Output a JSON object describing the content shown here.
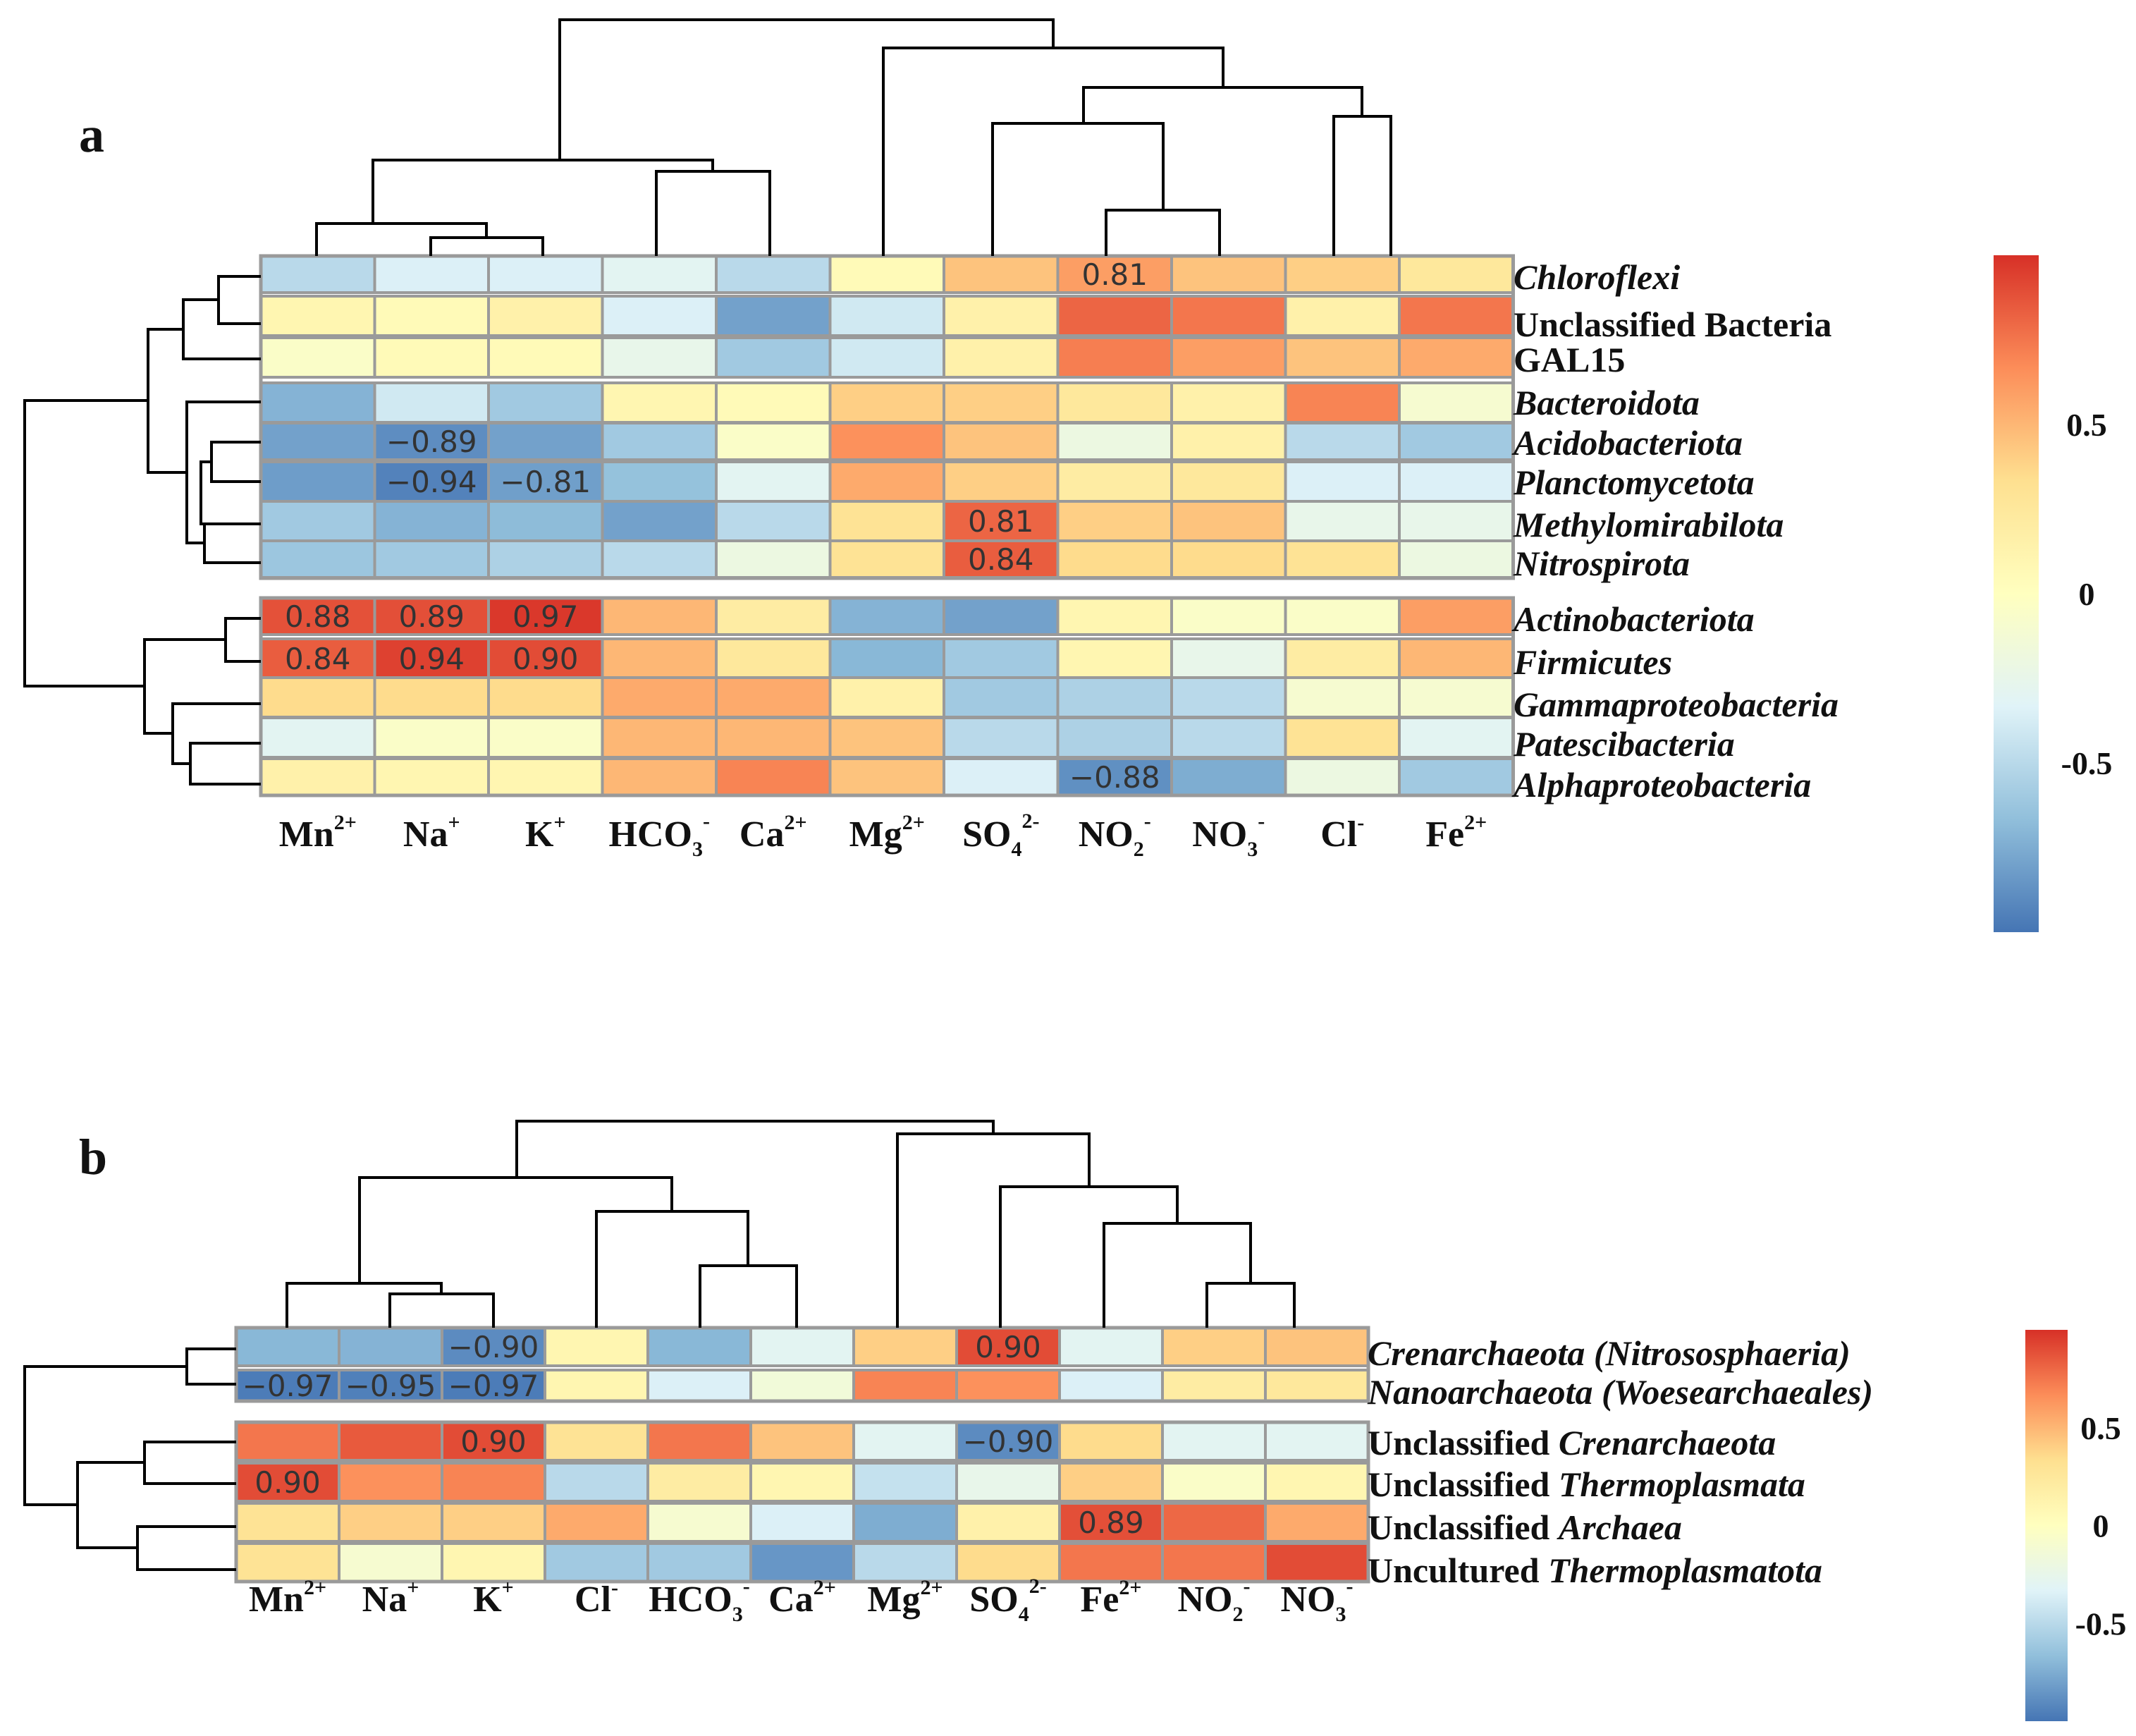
{
  "chart_data": [
    {
      "panel_label": "a",
      "type": "heatmap",
      "columns": [
        "Mn2+",
        "Na+",
        "K+",
        "HCO3-",
        "Ca2+",
        "Mg2+",
        "SO42-",
        "NO2-",
        "NO3-",
        "Cl-",
        "Fe2+"
      ],
      "column_labels": [
        {
          "base": "Mn",
          "sup": "2+",
          "sub": ""
        },
        {
          "base": "Na",
          "sup": "+",
          "sub": ""
        },
        {
          "base": "K",
          "sup": "+",
          "sub": ""
        },
        {
          "base": "HCO",
          "sup": "-",
          "sub": "3"
        },
        {
          "base": "Ca",
          "sup": "2+",
          "sub": ""
        },
        {
          "base": "Mg",
          "sup": "2+",
          "sub": ""
        },
        {
          "base": "SO",
          "sup": "2-",
          "sub": "4"
        },
        {
          "base": "NO",
          "sup": "-",
          "sub": "2"
        },
        {
          "base": "NO",
          "sup": "-",
          "sub": "3"
        },
        {
          "base": "Cl",
          "sup": "-",
          "sub": ""
        },
        {
          "base": "Fe",
          "sup": "2+",
          "sub": ""
        }
      ],
      "rows": [
        {
          "parts": [
            {
              "t": "Chloroflexi",
              "i": true
            }
          ]
        },
        {
          "parts": [
            {
              "t": "Unclassified Bacteria",
              "i": false
            }
          ]
        },
        {
          "parts": [
            {
              "t": "GAL15",
              "i": false
            }
          ]
        },
        {
          "parts": [
            {
              "t": "Bacteroidota",
              "i": true
            }
          ]
        },
        {
          "parts": [
            {
              "t": "Acidobacteriota",
              "i": true
            }
          ]
        },
        {
          "parts": [
            {
              "t": "Planctomycetota",
              "i": true
            }
          ]
        },
        {
          "parts": [
            {
              "t": "Methylomirabilota",
              "i": true
            }
          ]
        },
        {
          "parts": [
            {
              "t": "Nitrospirota",
              "i": true
            }
          ]
        },
        {
          "parts": [
            {
              "t": "Actinobacteriota",
              "i": true
            }
          ]
        },
        {
          "parts": [
            {
              "t": "Firmicutes",
              "i": true
            }
          ]
        },
        {
          "parts": [
            {
              "t": "Gammaproteobacteria",
              "i": true
            }
          ]
        },
        {
          "parts": [
            {
              "t": "Patescibacteria",
              "i": true
            }
          ]
        },
        {
          "parts": [
            {
              "t": "Alphaproteobacteria",
              "i": true
            }
          ]
        }
      ],
      "values": [
        [
          -0.5,
          -0.35,
          -0.35,
          -0.3,
          -0.5,
          0.05,
          0.45,
          0.6,
          0.45,
          0.4,
          0.25
        ],
        [
          0.1,
          0.05,
          0.15,
          -0.35,
          -0.8,
          -0.4,
          0.15,
          0.81,
          0.75,
          0.15,
          0.75
        ],
        [
          -0.05,
          0.05,
          0.05,
          -0.25,
          -0.6,
          -0.4,
          0.15,
          0.72,
          0.6,
          0.45,
          0.55
        ],
        [
          -0.72,
          -0.4,
          -0.6,
          0.1,
          0.05,
          0.4,
          0.4,
          0.25,
          0.15,
          0.7,
          -0.1
        ],
        [
          -0.8,
          -0.89,
          -0.8,
          -0.6,
          -0.05,
          0.65,
          0.45,
          -0.2,
          0.15,
          -0.5,
          -0.6
        ],
        [
          -0.82,
          -0.94,
          -0.81,
          -0.65,
          -0.3,
          0.55,
          0.4,
          0.2,
          0.25,
          -0.35,
          -0.35
        ],
        [
          -0.6,
          -0.72,
          -0.68,
          -0.8,
          -0.5,
          0.3,
          0.81,
          0.4,
          0.45,
          -0.25,
          -0.25
        ],
        [
          -0.62,
          -0.6,
          -0.55,
          -0.5,
          -0.2,
          0.3,
          0.84,
          0.35,
          0.35,
          0.3,
          -0.2
        ],
        [
          0.88,
          0.89,
          0.97,
          0.5,
          0.2,
          -0.72,
          -0.8,
          0.1,
          -0.05,
          -0.05,
          0.6
        ],
        [
          0.84,
          0.94,
          0.9,
          0.5,
          0.25,
          -0.7,
          -0.6,
          0.1,
          -0.25,
          0.2,
          0.5
        ],
        [
          0.35,
          0.35,
          0.35,
          0.55,
          0.55,
          0.15,
          -0.6,
          -0.55,
          -0.5,
          -0.1,
          -0.1
        ],
        [
          -0.3,
          -0.05,
          -0.05,
          0.5,
          0.5,
          0.45,
          -0.5,
          -0.55,
          -0.5,
          0.3,
          -0.3
        ],
        [
          0.15,
          0.1,
          0.1,
          0.5,
          0.7,
          0.45,
          -0.35,
          -0.88,
          -0.75,
          -0.2,
          -0.6
        ]
      ],
      "labels": [
        [
          null,
          null,
          null,
          null,
          null,
          null,
          null,
          "0.81",
          null,
          null,
          null
        ],
        [
          null,
          null,
          null,
          null,
          null,
          null,
          null,
          null,
          null,
          null,
          null
        ],
        [
          null,
          null,
          null,
          null,
          null,
          null,
          null,
          null,
          null,
          null,
          null
        ],
        [
          null,
          null,
          null,
          null,
          null,
          null,
          null,
          null,
          null,
          null,
          null
        ],
        [
          null,
          "−0.89",
          null,
          null,
          null,
          null,
          null,
          null,
          null,
          null,
          null
        ],
        [
          null,
          "−0.94",
          "−0.81",
          null,
          null,
          null,
          null,
          null,
          null,
          null,
          null
        ],
        [
          null,
          null,
          null,
          null,
          null,
          null,
          "0.81",
          null,
          null,
          null,
          null
        ],
        [
          null,
          null,
          null,
          null,
          null,
          null,
          "0.84",
          null,
          null,
          null,
          null
        ],
        [
          "0.88",
          "0.89",
          "0.97",
          null,
          null,
          null,
          null,
          null,
          null,
          null,
          null
        ],
        [
          "0.84",
          "0.94",
          "0.90",
          null,
          null,
          null,
          null,
          null,
          null,
          null,
          null
        ],
        [
          null,
          null,
          null,
          null,
          null,
          null,
          null,
          null,
          null,
          null,
          null
        ],
        [
          null,
          null,
          null,
          null,
          null,
          null,
          null,
          null,
          null,
          null,
          null
        ],
        [
          null,
          null,
          null,
          null,
          null,
          null,
          null,
          "−0.88",
          null,
          null,
          null
        ]
      ],
      "row_groups": [
        8,
        5
      ],
      "colorbar": {
        "ticks": [
          "0.5",
          "0",
          "-0.5"
        ],
        "tick_values": [
          0.5,
          0,
          -0.5
        ],
        "range": [
          -1,
          1
        ]
      }
    },
    {
      "panel_label": "b",
      "type": "heatmap",
      "columns": [
        "Mn2+",
        "Na+",
        "K+",
        "Cl-",
        "HCO3-",
        "Ca2+",
        "Mg2+",
        "SO42-",
        "Fe2+",
        "NO2-",
        "NO3-"
      ],
      "column_labels": [
        {
          "base": "Mn",
          "sup": "2+",
          "sub": ""
        },
        {
          "base": "Na",
          "sup": "+",
          "sub": ""
        },
        {
          "base": "K",
          "sup": "+",
          "sub": ""
        },
        {
          "base": "Cl",
          "sup": "-",
          "sub": ""
        },
        {
          "base": "HCO",
          "sup": "-",
          "sub": "3"
        },
        {
          "base": "Ca",
          "sup": "2+",
          "sub": ""
        },
        {
          "base": "Mg",
          "sup": "2+",
          "sub": ""
        },
        {
          "base": "SO",
          "sup": "2-",
          "sub": "4"
        },
        {
          "base": "Fe",
          "sup": "2+",
          "sub": ""
        },
        {
          "base": "NO",
          "sup": "-",
          "sub": "2"
        },
        {
          "base": "NO",
          "sup": "-",
          "sub": "3"
        }
      ],
      "rows": [
        {
          "parts": [
            {
              "t": "Crenarchaeota (Nitrososphaeria)",
              "i": true
            }
          ]
        },
        {
          "parts": [
            {
              "t": "Nanoarchaeota (Woesearchaeales)",
              "i": true
            }
          ]
        },
        {
          "parts": [
            {
              "t": "Unclassified ",
              "i": false
            },
            {
              "t": "Crenarchaeota",
              "i": true
            }
          ]
        },
        {
          "parts": [
            {
              "t": "Unclassified ",
              "i": false
            },
            {
              "t": "Thermoplasmata",
              "i": true
            }
          ]
        },
        {
          "parts": [
            {
              "t": "Unclassified ",
              "i": false
            },
            {
              "t": "Archaea",
              "i": true
            }
          ]
        },
        {
          "parts": [
            {
              "t": "Uncultured ",
              "i": false
            },
            {
              "t": "Thermoplasmatota",
              "i": true
            }
          ]
        }
      ],
      "values": [
        [
          -0.7,
          -0.72,
          -0.9,
          0.1,
          -0.7,
          -0.3,
          0.4,
          0.9,
          -0.3,
          0.4,
          0.45
        ],
        [
          -0.97,
          -0.95,
          -0.97,
          0.1,
          -0.35,
          -0.15,
          0.7,
          0.65,
          -0.35,
          0.2,
          0.25
        ],
        [
          0.75,
          0.85,
          0.9,
          0.3,
          0.75,
          0.45,
          -0.3,
          -0.9,
          0.35,
          -0.3,
          -0.3
        ],
        [
          0.9,
          0.65,
          0.7,
          -0.5,
          0.2,
          0.1,
          -0.45,
          -0.25,
          0.4,
          -0.05,
          0.1
        ],
        [
          0.3,
          0.4,
          0.4,
          0.55,
          -0.1,
          -0.35,
          -0.75,
          0.15,
          0.89,
          0.8,
          0.55
        ],
        [
          0.3,
          -0.1,
          0.1,
          -0.6,
          -0.6,
          -0.85,
          -0.5,
          0.35,
          0.75,
          0.75,
          0.9
        ]
      ],
      "labels": [
        [
          null,
          null,
          "−0.90",
          null,
          null,
          null,
          null,
          "0.90",
          null,
          null,
          null
        ],
        [
          "−0.97",
          "−0.95",
          "−0.97",
          null,
          null,
          null,
          null,
          null,
          null,
          null,
          null
        ],
        [
          null,
          null,
          "0.90",
          null,
          null,
          null,
          null,
          "−0.90",
          null,
          null,
          null
        ],
        [
          "0.90",
          null,
          null,
          null,
          null,
          null,
          null,
          null,
          null,
          null,
          null
        ],
        [
          null,
          null,
          null,
          null,
          null,
          null,
          null,
          null,
          "0.89",
          null,
          null
        ],
        [
          null,
          null,
          null,
          null,
          null,
          null,
          null,
          null,
          null,
          null,
          null
        ]
      ],
      "row_groups": [
        2,
        4
      ],
      "colorbar": {
        "ticks": [
          "0.5",
          "0",
          "-0.5"
        ],
        "tick_values": [
          0.5,
          0,
          -0.5
        ],
        "range": [
          -1,
          1
        ]
      }
    }
  ],
  "colors": {
    "palette": [
      "#4575b4",
      "#91bfdb",
      "#e0f3f8",
      "#ffffbf",
      "#fee090",
      "#fc8d59",
      "#d73027"
    ],
    "grid": "#9a9a9a",
    "text": "#111111"
  }
}
